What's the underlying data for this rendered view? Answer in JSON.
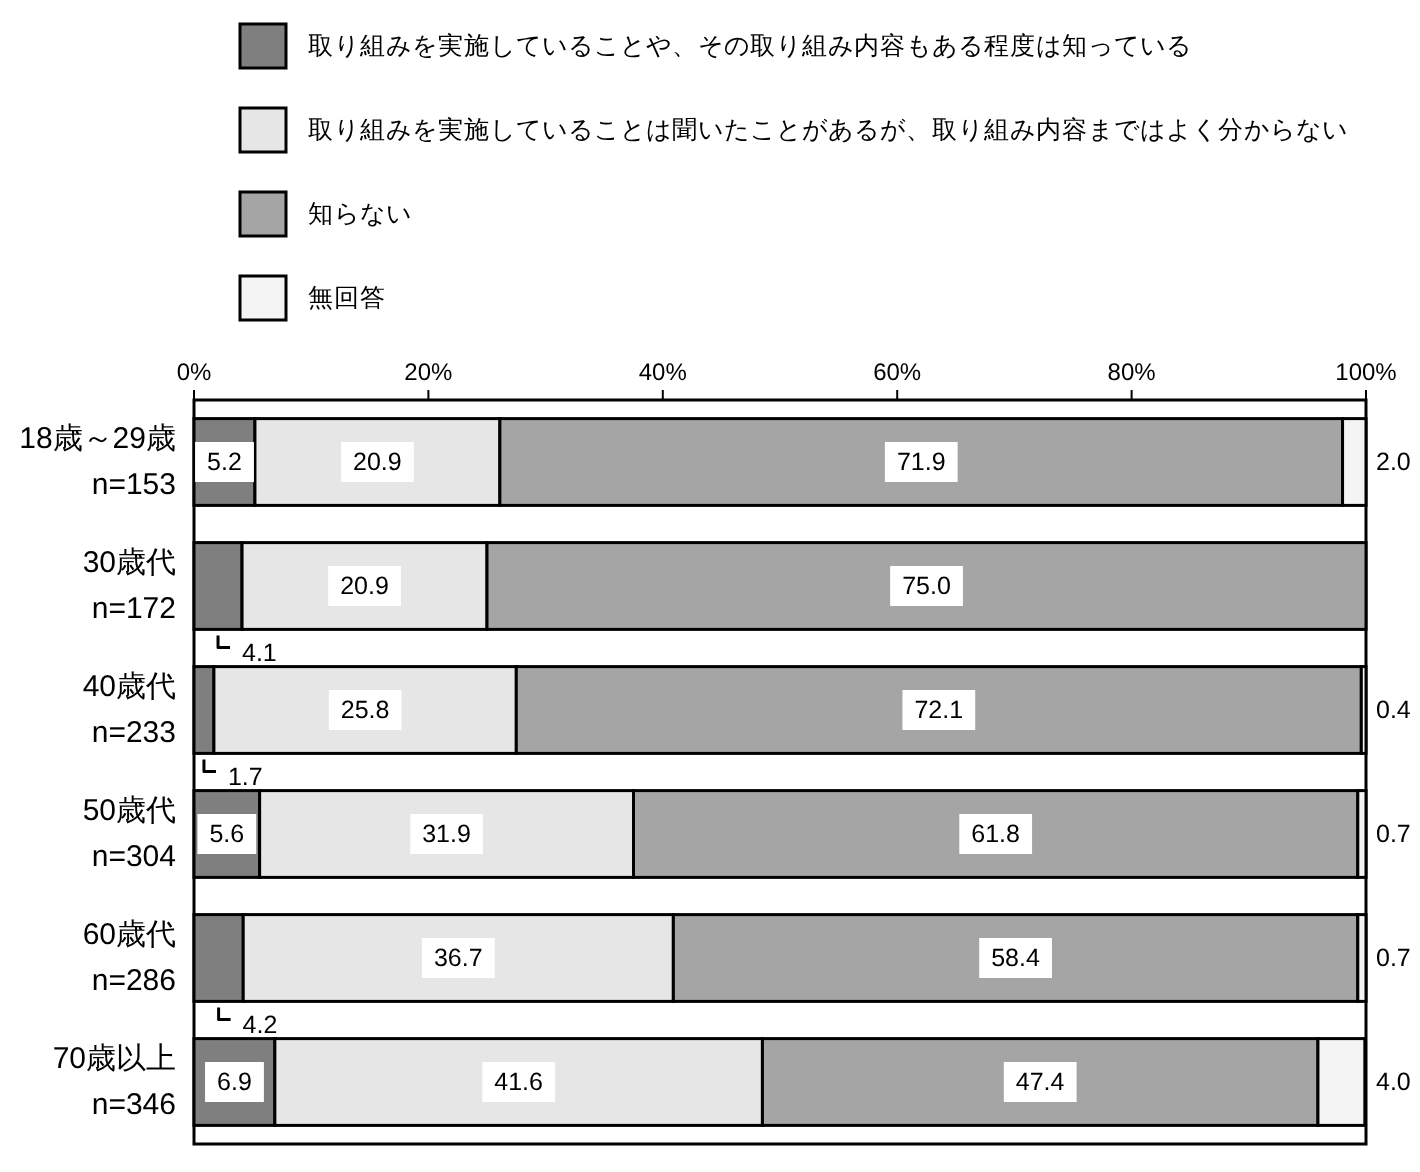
{
  "chart_data": {
    "type": "bar",
    "orientation": "horizontal",
    "stacked": true,
    "legend": "top",
    "categories": [
      "18歳～29歳\nn=153",
      "30歳代\nn=172",
      "40歳代\nn=233",
      "50歳代\nn=304",
      "60歳代\nn=286",
      "70歳以上\nn=346"
    ],
    "xlim": [
      0,
      100
    ],
    "xticks": [
      {
        "value": 0,
        "label": "0%"
      },
      {
        "value": 20,
        "label": "20%"
      },
      {
        "value": 40,
        "label": "40%"
      },
      {
        "value": 60,
        "label": "60%"
      },
      {
        "value": 80,
        "label": "80%"
      },
      {
        "value": 100,
        "label": "100%"
      }
    ],
    "series": [
      {
        "name": "取り組みを実施していることや、その取り組み内容もある程度は知っている",
        "color": "#7f7f7f",
        "values": [
          5.2,
          4.1,
          1.7,
          5.6,
          4.2,
          6.9
        ],
        "value_labels": [
          "5.2",
          "4.1",
          "1.7",
          "5.6",
          "4.2",
          "6.9"
        ]
      },
      {
        "name": "取り組みを実施していることは聞いたことがあるが、取り組み内容まではよく分からない",
        "color": "#e6e6e6",
        "values": [
          20.9,
          20.9,
          25.8,
          31.9,
          36.7,
          41.6
        ],
        "value_labels": [
          "20.9",
          "20.9",
          "25.8",
          "31.9",
          "36.7",
          "41.6"
        ]
      },
      {
        "name": "知らない",
        "color": "#a5a5a5",
        "values": [
          71.9,
          75.0,
          72.1,
          61.8,
          58.4,
          47.4
        ],
        "value_labels": [
          "71.9",
          "75.0",
          "72.1",
          "61.8",
          "58.4",
          "47.4"
        ]
      },
      {
        "name": "無回答",
        "color": "#f4f4f4",
        "values": [
          2.0,
          0,
          0.4,
          0.7,
          0.7,
          4.0
        ],
        "value_labels": [
          "2.0",
          null,
          "0.4",
          "0.7",
          "0.7",
          "4.0"
        ]
      }
    ]
  }
}
